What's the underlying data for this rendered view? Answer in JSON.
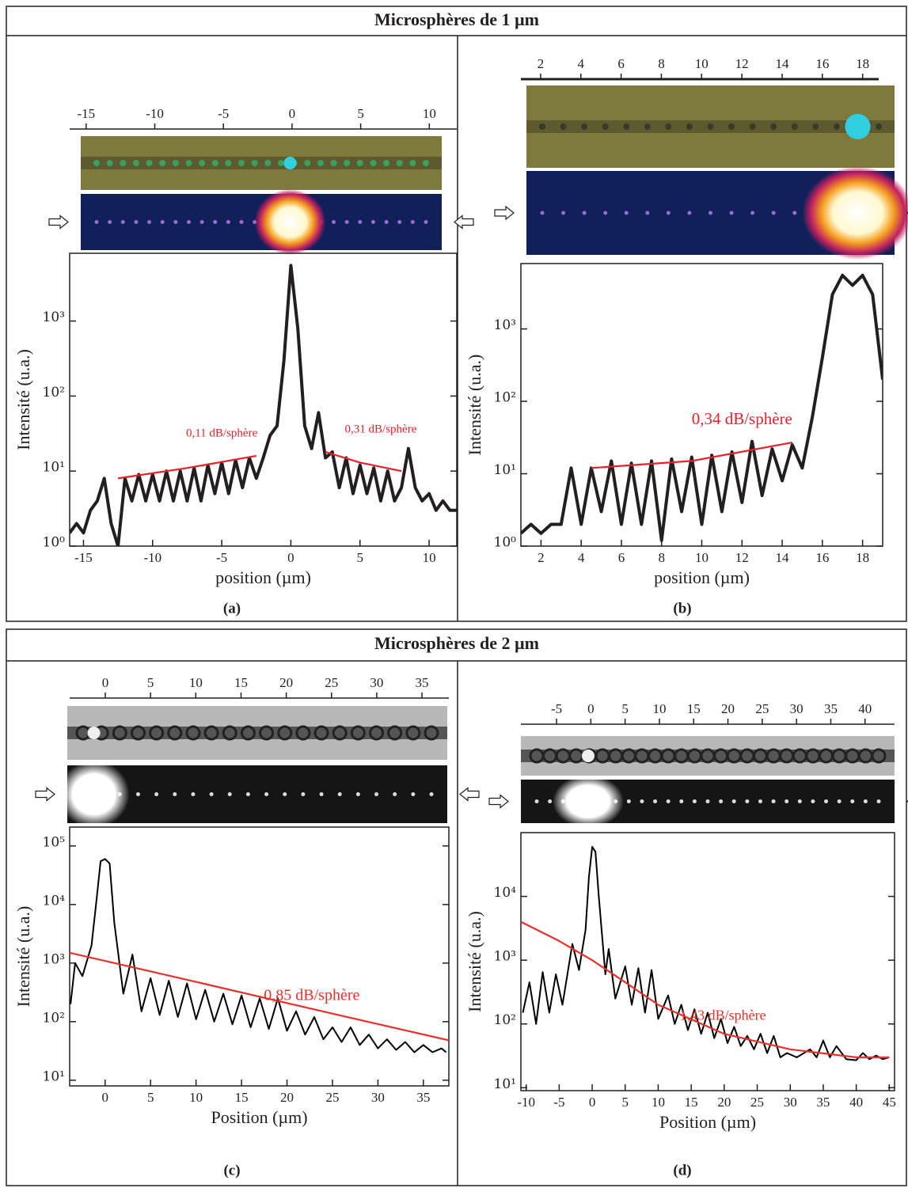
{
  "headers": [
    "Microsphères de 1 µm",
    "Microsphères de 2 µm"
  ],
  "chart_data": [
    {
      "type": "line",
      "caption": "(a)",
      "xlabel": "position (µm)",
      "ylabel": "Intensité (u.a.)",
      "yscale": "log",
      "xlim": [
        -16,
        12
      ],
      "xticks": [
        -15,
        -10,
        -5,
        0,
        5,
        10
      ],
      "ylim": [
        1,
        8000
      ],
      "yticks": [
        {
          "value": 1,
          "label": "10⁰"
        },
        {
          "value": 10,
          "label": "10¹"
        },
        {
          "value": 100,
          "label": "10²"
        },
        {
          "value": 1000,
          "label": "10³"
        }
      ],
      "image_scale": {
        "xlim": [
          -16.2,
          12
        ],
        "xticks": [
          -15,
          -10,
          -5,
          0,
          5,
          10
        ]
      },
      "series": [
        {
          "color": "#231f20",
          "x": [
            -16,
            -15.5,
            -15,
            -14.5,
            -14,
            -13.5,
            -13,
            -12.5,
            -12,
            -11.5,
            -11,
            -10.5,
            -10,
            -9.5,
            -9,
            -8.5,
            -8,
            -7.5,
            -7,
            -6.5,
            -6,
            -5.5,
            -5,
            -4.5,
            -4,
            -3.5,
            -3,
            -2.5,
            -2,
            -1.5,
            -1,
            -0.5,
            0,
            0.5,
            1,
            1.5,
            2,
            2.5,
            3,
            3.5,
            4,
            4.5,
            5,
            5.5,
            6,
            6.5,
            7,
            7.5,
            8,
            8.5,
            9,
            9.5,
            10,
            10.5,
            11,
            11.5,
            12
          ],
          "values": [
            1.5,
            2,
            1.5,
            3,
            4,
            8,
            2,
            1,
            8,
            4,
            9,
            4,
            9,
            4,
            10,
            4,
            10,
            4,
            11,
            4,
            12,
            5,
            13,
            5,
            14,
            6,
            15,
            8,
            15,
            30,
            40,
            300,
            5500,
            800,
            40,
            20,
            60,
            15,
            18,
            6,
            15,
            5,
            12,
            5,
            11,
            4,
            10,
            4,
            6,
            20,
            6,
            4,
            5,
            3,
            4,
            3,
            3
          ]
        },
        {
          "color": "#e8212a",
          "label": "0,11 dB/sphère",
          "x": [
            -12.5,
            -7.5,
            -2.5
          ],
          "values": [
            8,
            11,
            16
          ]
        },
        {
          "color": "#e8212a",
          "label": "0,31 dB/sphère",
          "x": [
            2.5,
            5,
            8
          ],
          "values": [
            18,
            13,
            10
          ]
        }
      ]
    },
    {
      "type": "line",
      "caption": "(b)",
      "xlabel": "position (µm)",
      "ylabel": "Intensité (u.a.)",
      "yscale": "log",
      "xlim": [
        1,
        19
      ],
      "xticks": [
        2,
        4,
        6,
        8,
        10,
        12,
        14,
        16,
        18
      ],
      "ylim": [
        1,
        8000
      ],
      "yticks": [
        {
          "value": 1,
          "label": "10⁰"
        },
        {
          "value": 10,
          "label": "10¹"
        },
        {
          "value": 100,
          "label": "10²"
        },
        {
          "value": 1000,
          "label": "10³"
        }
      ],
      "image_scale": {
        "xlim": [
          1.02,
          18.8
        ],
        "xticks": [
          2,
          4,
          6,
          8,
          10,
          12,
          14,
          16,
          18
        ]
      },
      "series": [
        {
          "color": "#231f20",
          "x": [
            1,
            1.5,
            2,
            2.5,
            3,
            3.5,
            4,
            4.5,
            5,
            5.5,
            6,
            6.5,
            7,
            7.5,
            8,
            8.5,
            9,
            9.5,
            10,
            10.5,
            11,
            11.5,
            12,
            12.5,
            13,
            13.5,
            14,
            14.5,
            15,
            15.5,
            16,
            16.5,
            17,
            17.5,
            18,
            18.5,
            19
          ],
          "values": [
            1.5,
            2,
            1.5,
            2,
            2,
            12,
            2,
            12,
            3,
            15,
            2,
            14,
            2,
            15,
            1.2,
            16,
            3,
            17,
            2,
            18,
            3,
            20,
            4,
            28,
            5,
            22,
            8,
            25,
            12,
            60,
            400,
            3000,
            5500,
            4000,
            5500,
            3000,
            200
          ]
        },
        {
          "color": "#e8212a",
          "label": "0,34 dB/sphère",
          "x": [
            4.5,
            9.5,
            14.5
          ],
          "values": [
            12,
            15,
            27
          ]
        }
      ]
    },
    {
      "type": "line",
      "caption": "(c)",
      "xlabel": "Position (µm)",
      "ylabel": "Intensité (u.a.)",
      "yscale": "log",
      "xlim": [
        -3.9,
        37.8
      ],
      "xticks": [
        0,
        5,
        10,
        15,
        20,
        25,
        30,
        35
      ],
      "ylim": [
        8,
        210000
      ],
      "yticks": [
        {
          "value": 10,
          "label": "10¹"
        },
        {
          "value": 100,
          "label": "10²"
        },
        {
          "value": 1000,
          "label": "10³"
        },
        {
          "value": 10000,
          "label": "10⁴"
        },
        {
          "value": 100000,
          "label": "10⁵"
        }
      ],
      "image_scale": {
        "xlim": [
          -3.94,
          37.97
        ],
        "xticks": [
          0,
          5,
          10,
          15,
          20,
          25,
          30,
          35
        ]
      },
      "series": [
        {
          "color": "#000000",
          "x": [
            -3.8,
            -3.3,
            -2.5,
            -1.5,
            -1,
            -0.5,
            0,
            0.5,
            1,
            2,
            3,
            4,
            5,
            6,
            7,
            8,
            9,
            10,
            11,
            12,
            13,
            14,
            15,
            16,
            17,
            18,
            19,
            20,
            21,
            22,
            23,
            24,
            25,
            26,
            27,
            28,
            29,
            30,
            31,
            32,
            33,
            34,
            35,
            36,
            37,
            37.5
          ],
          "values": [
            200,
            1000,
            600,
            2000,
            10000,
            55000,
            60000,
            50000,
            5000,
            300,
            1400,
            150,
            550,
            130,
            500,
            120,
            450,
            110,
            350,
            100,
            300,
            90,
            280,
            80,
            250,
            75,
            250,
            70,
            150,
            60,
            120,
            50,
            80,
            45,
            80,
            40,
            60,
            35,
            50,
            33,
            45,
            30,
            40,
            30,
            35,
            30
          ]
        },
        {
          "color": "#e8312a",
          "label": "0,85 dB/sphère",
          "x": [
            -3.9,
            10,
            25,
            37.8
          ],
          "values": [
            1500,
            478,
            137,
            48
          ]
        }
      ]
    },
    {
      "type": "line",
      "caption": "(d)",
      "xlabel": "Position (µm)",
      "ylabel": "Intensité (u.a.)",
      "yscale": "log",
      "xlim": [
        -10.8,
        45.8
      ],
      "xticks": [
        -10,
        -5,
        0,
        5,
        10,
        15,
        20,
        25,
        30,
        35,
        40,
        45
      ],
      "ylim": [
        9,
        100000
      ],
      "yticks": [
        {
          "value": 10,
          "label": "10¹"
        },
        {
          "value": 100,
          "label": "10²"
        },
        {
          "value": 1000,
          "label": "10³"
        },
        {
          "value": 10000,
          "label": "10⁴"
        }
      ],
      "image_scale": {
        "xlim": [
          -10.2,
          44.3
        ],
        "xticks": [
          -5,
          0,
          5,
          10,
          15,
          20,
          25,
          30,
          35,
          40
        ]
      },
      "series": [
        {
          "color": "#000000",
          "x": [
            -10.5,
            -9.5,
            -8.5,
            -7.5,
            -6.5,
            -5.5,
            -4.5,
            -3,
            -2,
            -1,
            -0.5,
            0,
            0.5,
            1,
            2,
            2.5,
            3.5,
            5,
            6,
            7,
            8,
            9,
            10,
            11.5,
            12.5,
            13.5,
            14.5,
            15.5,
            16.5,
            17.5,
            18.5,
            19.5,
            20.5,
            21.5,
            22.5,
            23.5,
            24.5,
            25.5,
            26.5,
            27.5,
            28.5,
            29.5,
            31,
            33,
            34,
            35,
            36,
            37,
            38.5,
            40,
            41,
            42,
            43,
            44,
            45
          ],
          "values": [
            150,
            450,
            100,
            650,
            150,
            600,
            200,
            1800,
            700,
            3000,
            20000,
            60000,
            50000,
            10000,
            600,
            1500,
            250,
            800,
            200,
            750,
            150,
            700,
            120,
            280,
            100,
            200,
            80,
            170,
            70,
            150,
            60,
            120,
            50,
            90,
            45,
            65,
            40,
            70,
            35,
            65,
            30,
            35,
            30,
            40,
            30,
            55,
            30,
            45,
            28,
            27,
            35,
            28,
            32,
            28,
            30
          ]
        },
        {
          "color": "#e8312a",
          "label": "1,43 dB/sphère",
          "x": [
            -10.8,
            -5,
            0,
            5,
            10,
            20,
            30,
            40,
            45
          ],
          "values": [
            4000,
            2000,
            1000,
            450,
            200,
            70,
            40,
            30,
            30
          ]
        }
      ]
    }
  ]
}
